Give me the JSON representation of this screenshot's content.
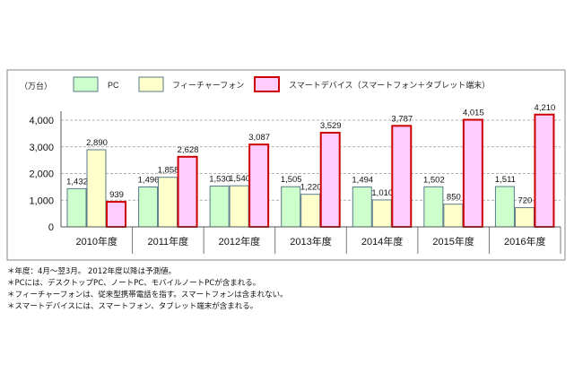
{
  "chart_data": {
    "type": "bar",
    "unit_label": "（万台）",
    "categories": [
      "2010年度",
      "2011年度",
      "2012年度",
      "2013年度",
      "2014年度",
      "2015年度",
      "2016年度"
    ],
    "series": [
      {
        "name": "PC",
        "values": [
          1432,
          1496,
          1530,
          1505,
          1494,
          1502,
          1511
        ],
        "fill": "#ccffcc",
        "stroke": "#5a7a8a"
      },
      {
        "name": "フィーチャーフォン",
        "values": [
          2890,
          1858,
          1540,
          1220,
          1010,
          850,
          720
        ],
        "fill": "#ffffcc",
        "stroke": "#5a7a8a"
      },
      {
        "name": "スマートデバイス（スマートフォン＋タブレット端末）",
        "values": [
          939,
          2628,
          3087,
          3529,
          3787,
          4015,
          4210
        ],
        "fill": "#ffccff",
        "stroke": "#cc0000"
      }
    ],
    "data_labels": [
      [
        "1,432",
        "1,496",
        "1,530",
        "1,505",
        "1,494",
        "1,502",
        "1,511"
      ],
      [
        "2,890",
        "1,858",
        "1,540",
        "1,220",
        "1,010",
        "850",
        "720"
      ],
      [
        "939",
        "2,628",
        "3,087",
        "3,529",
        "3,787",
        "4,015",
        "4,210"
      ]
    ],
    "yticks": [
      "0",
      "1,000",
      "2,000",
      "3,000",
      "4,000"
    ],
    "ytick_values": [
      0,
      1000,
      2000,
      3000,
      4000
    ],
    "ylim": [
      0,
      4000
    ],
    "grid": true,
    "legend": "top"
  },
  "notes": [
    "＊年度：4月～翌3月。 2012年度以降は予測値。",
    "＊PCには、デスクトップPC、ノートPC、モバイルノートPCが含まれる。",
    "＊フィーチャーフォンは、従来型携帯電話を指す。スマートフォンは含まれない。",
    "＊スマートデバイスには、スマートフォン、タブレット端末が含まれる。"
  ]
}
